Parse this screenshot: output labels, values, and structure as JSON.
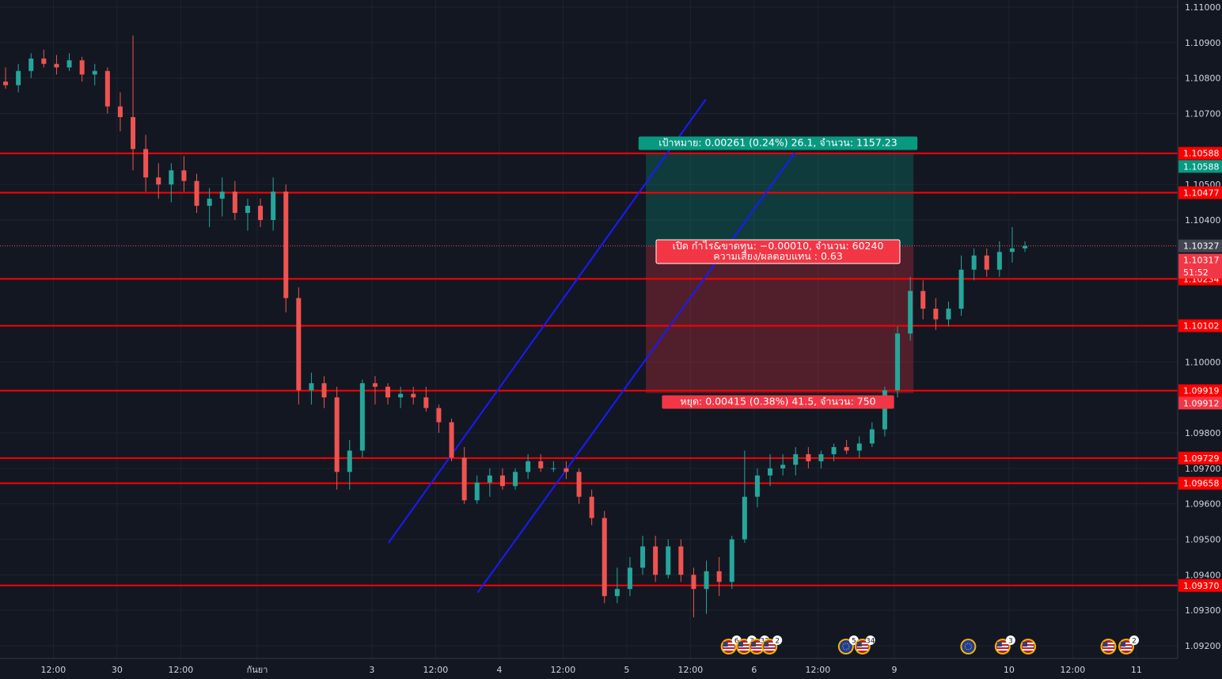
{
  "chart_data": {
    "type": "candlestick",
    "symbol_hint": "EURUSD",
    "y_range": [
      1.09175,
      1.11015
    ],
    "y_ticks": [
      "1.11000",
      "1.10900",
      "1.10800",
      "1.10700",
      "1.10500",
      "1.10400",
      "1.10000",
      "1.09800",
      "1.09700",
      "1.09600",
      "1.09500",
      "1.09400",
      "1.09300",
      "1.09200"
    ],
    "x_labels": [
      "12:00",
      "30",
      "12:00",
      "กันยา",
      "3",
      "12:00",
      "4",
      "12:00",
      "5",
      "12:00",
      "6",
      "12:00",
      "9",
      "10",
      "12:00",
      "11"
    ],
    "x_label_bars": [
      4,
      9,
      14,
      20,
      29,
      34,
      39,
      44,
      49,
      54,
      59,
      64,
      70,
      79,
      84,
      89
    ],
    "colors": {
      "up": "#26a69a",
      "down": "#ef5350",
      "bg": "#131722",
      "grid": "#1e2331",
      "line": "#ff0000",
      "channel": "#1a1aff",
      "target": "#089981",
      "stop": "#f23645"
    },
    "horizontal_lines": [
      {
        "price": 1.10588,
        "label": "1.10588"
      },
      {
        "price": 1.10477,
        "label": "1.10477"
      },
      {
        "price": 1.10234,
        "label": "1.10234"
      },
      {
        "price": 1.10102,
        "label": "1.10102"
      },
      {
        "price": 1.09919,
        "label": "1.09919"
      },
      {
        "price": 1.09729,
        "label": "1.09729"
      },
      {
        "price": 1.09658,
        "label": "1.09658"
      },
      {
        "price": 1.0937,
        "label": "1.09370"
      }
    ],
    "extra_price_labels": [
      {
        "price": 1.10551,
        "label": "1.10588",
        "color": "#089981"
      },
      {
        "price": 1.10327,
        "label": "1.10327",
        "color": "#434651"
      },
      {
        "price": 1.10287,
        "label": "1.10317",
        "color": "#f23645"
      },
      {
        "price": 1.10253,
        "label": "51:52",
        "color": "#f23645"
      },
      {
        "price": 1.09884,
        "label": "1.09912",
        "color": "#f23645"
      }
    ],
    "current_price": 1.10327,
    "channel": {
      "upper": [
        [
          30.3,
          1.0949
        ],
        [
          55.2,
          1.1074
        ]
      ],
      "lower": [
        [
          37.3,
          1.0935
        ],
        [
          62.2,
          1.1059
        ]
      ]
    },
    "position": {
      "x_start": 50.5,
      "x_end": 71.5,
      "entry": 1.10327,
      "target": 1.10588,
      "stop": 1.09912,
      "target_label": "เป้าหมาย: 0.00261 (0.24%) 26.1, จำนวน: 1157.23",
      "stop_label": "หยุด: 0.00415 (0.38%) 41.5, จำนวน: 750",
      "open_label": "เปิด กำไร&ขาดทุน: −0.00010, จำนวน: 60240",
      "ratio_label": "ความเสี่ยง/ผลตอบแทน : 0.63"
    },
    "events": [
      {
        "bar": 57.0,
        "flag": "us",
        "badge": "6"
      },
      {
        "bar": 58.2,
        "flag": "us",
        "badge": "3"
      },
      {
        "bar": 59.2,
        "flag": "us",
        "badge": "32"
      },
      {
        "bar": 60.2,
        "flag": "us",
        "badge": "2"
      },
      {
        "bar": 66.2,
        "flag": "eu",
        "badge": "5"
      },
      {
        "bar": 67.5,
        "flag": "us",
        "badge": "34"
      },
      {
        "bar": 75.8,
        "flag": "eu",
        "badge": ""
      },
      {
        "bar": 78.5,
        "flag": "us",
        "badge": "3"
      },
      {
        "bar": 80.5,
        "flag": "us",
        "badge": ""
      },
      {
        "bar": 86.8,
        "flag": "us",
        "badge": ""
      },
      {
        "bar": 88.2,
        "flag": "us",
        "badge": "2"
      }
    ],
    "ohlc": [
      [
        1.1079,
        1.1083,
        1.1077,
        1.1078
      ],
      [
        1.1078,
        1.1084,
        1.1076,
        1.1082
      ],
      [
        1.1082,
        1.1087,
        1.108,
        1.10855
      ],
      [
        1.10855,
        1.1088,
        1.1083,
        1.1084
      ],
      [
        1.1084,
        1.10865,
        1.1081,
        1.1083
      ],
      [
        1.1083,
        1.1087,
        1.1082,
        1.1085
      ],
      [
        1.1085,
        1.1086,
        1.1079,
        1.1081
      ],
      [
        1.1081,
        1.1084,
        1.1078,
        1.1082
      ],
      [
        1.1082,
        1.1083,
        1.107,
        1.1072
      ],
      [
        1.1072,
        1.1076,
        1.1065,
        1.1069
      ],
      [
        1.1069,
        1.1092,
        1.1054,
        1.106
      ],
      [
        1.106,
        1.1064,
        1.1048,
        1.1052
      ],
      [
        1.1052,
        1.1056,
        1.1046,
        1.105
      ],
      [
        1.105,
        1.1056,
        1.1045,
        1.1054
      ],
      [
        1.1054,
        1.1058,
        1.1048,
        1.1051
      ],
      [
        1.1051,
        1.1053,
        1.1042,
        1.1044
      ],
      [
        1.1044,
        1.1049,
        1.1038,
        1.1046
      ],
      [
        1.1046,
        1.1052,
        1.1041,
        1.1048
      ],
      [
        1.1048,
        1.1051,
        1.104,
        1.1042
      ],
      [
        1.1042,
        1.1046,
        1.1037,
        1.1044
      ],
      [
        1.1044,
        1.1046,
        1.1038,
        1.104
      ],
      [
        1.104,
        1.1052,
        1.1037,
        1.1048
      ],
      [
        1.1048,
        1.105,
        1.1014,
        1.1018
      ],
      [
        1.1018,
        1.1021,
        1.0988,
        1.0992
      ],
      [
        1.0992,
        1.0997,
        1.0988,
        1.0994
      ],
      [
        1.0994,
        1.0996,
        1.0987,
        1.099
      ],
      [
        1.099,
        1.0993,
        1.0964,
        1.0969
      ],
      [
        1.0969,
        1.0978,
        1.0964,
        1.0975
      ],
      [
        1.0975,
        1.0995,
        1.0973,
        1.0994
      ],
      [
        1.0994,
        1.0996,
        1.0988,
        1.0993
      ],
      [
        1.0993,
        1.0994,
        1.0988,
        1.099
      ],
      [
        1.099,
        1.0993,
        1.0987,
        1.0991
      ],
      [
        1.0991,
        1.0993,
        1.0988,
        1.099
      ],
      [
        1.099,
        1.0993,
        1.0986,
        1.0987
      ],
      [
        1.0987,
        1.0988,
        1.098,
        1.0983
      ],
      [
        1.0983,
        1.0984,
        1.0972,
        1.0973
      ],
      [
        1.0973,
        1.0976,
        1.096,
        1.0961
      ],
      [
        1.0961,
        1.0968,
        1.096,
        1.0966
      ],
      [
        1.0966,
        1.097,
        1.0962,
        1.0968
      ],
      [
        1.0968,
        1.097,
        1.0964,
        1.0965
      ],
      [
        1.0965,
        1.097,
        1.0964,
        1.0969
      ],
      [
        1.0969,
        1.0974,
        1.0967,
        1.0972
      ],
      [
        1.0972,
        1.0974,
        1.0969,
        1.097
      ],
      [
        1.097,
        1.0972,
        1.0969,
        1.097
      ],
      [
        1.097,
        1.0972,
        1.0967,
        1.0969
      ],
      [
        1.0969,
        1.097,
        1.096,
        1.0962
      ],
      [
        1.0962,
        1.0964,
        1.0954,
        1.0956
      ],
      [
        1.0956,
        1.0958,
        1.0932,
        1.0934
      ],
      [
        1.0934,
        1.0942,
        1.0932,
        1.0936
      ],
      [
        1.0936,
        1.0945,
        1.0934,
        1.0942
      ],
      [
        1.0942,
        1.0951,
        1.094,
        1.0948
      ],
      [
        1.0948,
        1.0951,
        1.0938,
        1.094
      ],
      [
        1.094,
        1.095,
        1.0939,
        1.0948
      ],
      [
        1.0948,
        1.095,
        1.0938,
        1.094
      ],
      [
        1.094,
        1.0942,
        1.0928,
        1.0936
      ],
      [
        1.0936,
        1.0944,
        1.0929,
        1.0941
      ],
      [
        1.0941,
        1.0945,
        1.0934,
        1.0938
      ],
      [
        1.0938,
        1.0951,
        1.0936,
        1.095
      ],
      [
        1.095,
        1.0975,
        1.0949,
        1.0962
      ],
      [
        1.0962,
        1.097,
        1.0959,
        1.0968
      ],
      [
        1.0968,
        1.0974,
        1.0965,
        1.097
      ],
      [
        1.097,
        1.0974,
        1.0968,
        1.0971
      ],
      [
        1.0971,
        1.0976,
        1.0968,
        1.0974
      ],
      [
        1.0974,
        1.0976,
        1.097,
        1.0972
      ],
      [
        1.0972,
        1.0975,
        1.097,
        1.0974
      ],
      [
        1.0974,
        1.0977,
        1.0972,
        1.0976
      ],
      [
        1.0976,
        1.0978,
        1.0974,
        1.0975
      ],
      [
        1.0975,
        1.0979,
        1.0973,
        1.0977
      ],
      [
        1.0977,
        1.0983,
        1.0976,
        1.0981
      ],
      [
        1.0981,
        1.0993,
        1.0979,
        1.0992
      ],
      [
        1.0992,
        1.101,
        1.099,
        1.1008
      ],
      [
        1.1008,
        1.1024,
        1.1006,
        1.102
      ],
      [
        1.102,
        1.1023,
        1.1012,
        1.1015
      ],
      [
        1.1015,
        1.1018,
        1.1009,
        1.1012
      ],
      [
        1.1012,
        1.1017,
        1.101,
        1.1015
      ],
      [
        1.1015,
        1.103,
        1.1013,
        1.1026
      ],
      [
        1.1026,
        1.1032,
        1.1023,
        1.103
      ],
      [
        1.103,
        1.1032,
        1.1024,
        1.1026
      ],
      [
        1.1026,
        1.1034,
        1.1024,
        1.1031
      ],
      [
        1.1031,
        1.1038,
        1.1028,
        1.1032
      ],
      [
        1.1032,
        1.1034,
        1.1031,
        1.10327
      ]
    ]
  }
}
